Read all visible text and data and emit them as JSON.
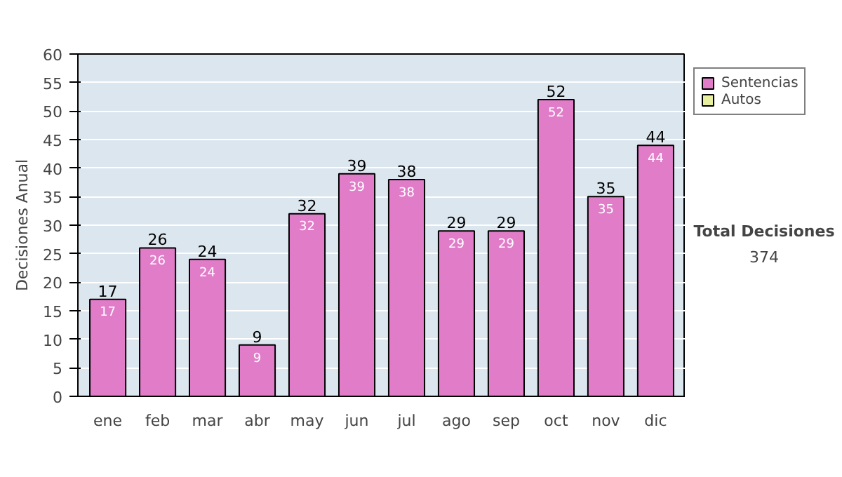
{
  "chart_data": {
    "type": "bar",
    "ylabel": "Decisiones Anual",
    "categories": [
      "ene",
      "feb",
      "mar",
      "abr",
      "may",
      "jun",
      "jul",
      "ago",
      "sep",
      "oct",
      "nov",
      "dic"
    ],
    "stacked": true,
    "series": [
      {
        "name": "Sentencias",
        "color": "#e07cc8",
        "values": [
          17,
          26,
          24,
          9,
          32,
          39,
          38,
          29,
          29,
          52,
          35,
          44
        ],
        "value_labels": [
          "17",
          "26",
          "24",
          "9",
          "32",
          "39",
          "38",
          "29",
          "29",
          "52",
          "35",
          "44"
        ]
      },
      {
        "name": "Autos",
        "color": "#e8f0a0",
        "values": [
          null,
          null,
          null,
          null,
          null,
          null,
          null,
          null,
          null,
          null,
          null,
          null
        ]
      }
    ],
    "totals": [
      "17",
      "26",
      "24",
      "9",
      "32",
      "39",
      "38",
      "29",
      "29",
      "52",
      "35",
      "44"
    ],
    "ylim": [
      0,
      60
    ],
    "yticks": [
      0,
      5,
      10,
      15,
      20,
      25,
      30,
      35,
      40,
      45,
      50,
      55,
      60
    ],
    "grid": "y",
    "legend": "right",
    "annotations": [
      "Total Decisiones",
      "374"
    ]
  }
}
